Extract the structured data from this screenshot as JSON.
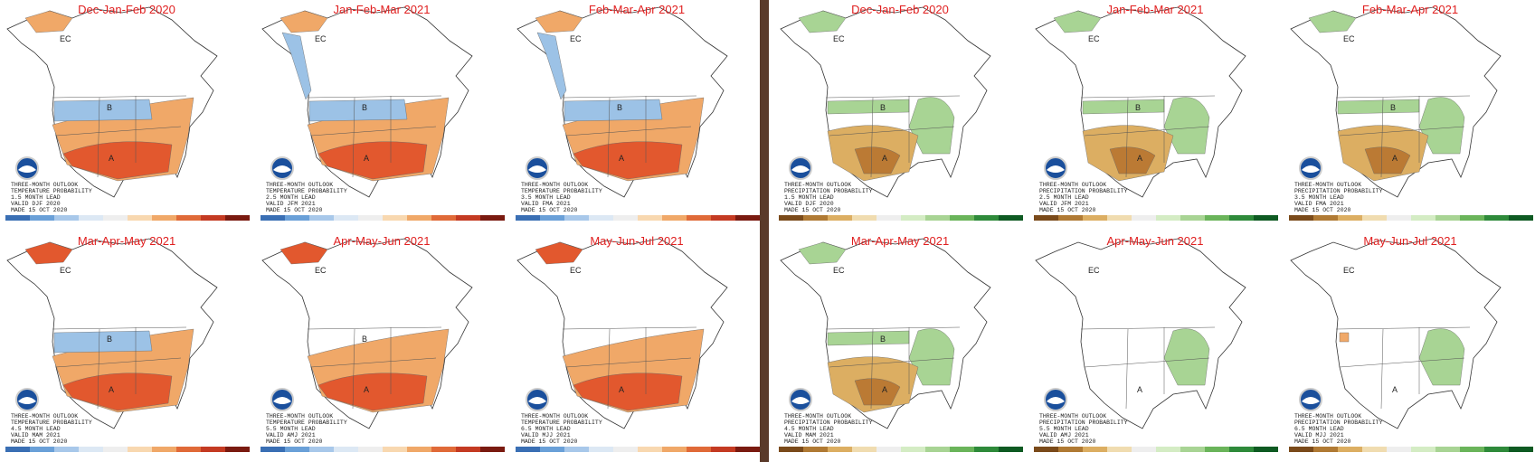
{
  "panels": [
    {
      "title": "Dec-Jan-Feb 2020",
      "outlook": [
        "THREE-MONTH OUTLOOK",
        "TEMPERATURE PROBABILITY",
        "1.5 MONTH LEAD",
        "VALID DJF 2020",
        "MADE 15 OCT 2020"
      ],
      "regions": [
        "EC",
        "A",
        "B"
      ]
    },
    {
      "title": "Jan-Feb-Mar 2021",
      "outlook": [
        "THREE-MONTH OUTLOOK",
        "TEMPERATURE PROBABILITY",
        "2.5 MONTH LEAD",
        "VALID JFM 2021",
        "MADE 15 OCT 2020"
      ],
      "regions": [
        "EC",
        "A",
        "B"
      ]
    },
    {
      "title": "Feb-Mar-Apr 2021",
      "outlook": [
        "THREE-MONTH OUTLOOK",
        "TEMPERATURE PROBABILITY",
        "3.5 MONTH LEAD",
        "VALID FMA 2021",
        "MADE 15 OCT 2020"
      ],
      "regions": [
        "EC",
        "A",
        "B"
      ]
    },
    {
      "title": "Mar-Apr-May 2021",
      "outlook": [
        "THREE-MONTH OUTLOOK",
        "TEMPERATURE PROBABILITY",
        "4.5 MONTH LEAD",
        "VALID MAM 2021",
        "MADE 15 OCT 2020"
      ],
      "regions": [
        "EC",
        "A",
        "B"
      ]
    },
    {
      "title": "Apr-May-Jun 2021",
      "outlook": [
        "THREE-MONTH OUTLOOK",
        "TEMPERATURE PROBABILITY",
        "5.5 MONTH LEAD",
        "VALID AMJ 2021",
        "MADE 15 OCT 2020"
      ],
      "regions": [
        "EC",
        "A",
        "B"
      ]
    },
    {
      "title": "May-Jun-Jul 2021",
      "outlook": [
        "THREE-MONTH OUTLOOK",
        "TEMPERATURE PROBABILITY",
        "6.5 MONTH LEAD",
        "VALID MJJ 2021",
        "MADE 15 OCT 2020"
      ],
      "regions": [
        "EC",
        "A"
      ]
    },
    {
      "title": "Dec-Jan-Feb 2020",
      "outlook": [
        "THREE-MONTH OUTLOOK",
        "PRECIPITATION PROBABILITY",
        "1.5 MONTH LEAD",
        "VALID DJF 2020",
        "MADE 15 OCT 2020"
      ],
      "regions": [
        "EC",
        "A",
        "B"
      ]
    },
    {
      "title": "Jan-Feb-Mar 2021",
      "outlook": [
        "THREE-MONTH OUTLOOK",
        "PRECIPITATION PROBABILITY",
        "2.5 MONTH LEAD",
        "VALID JFM 2021",
        "MADE 15 OCT 2020"
      ],
      "regions": [
        "EC",
        "A",
        "B"
      ]
    },
    {
      "title": "Feb-Mar-Apr 2021",
      "outlook": [
        "THREE-MONTH OUTLOOK",
        "PRECIPITATION PROBABILITY",
        "3.5 MONTH LEAD",
        "VALID FMA 2021",
        "MADE 15 OCT 2020"
      ],
      "regions": [
        "EC",
        "A",
        "B"
      ]
    },
    {
      "title": "Mar-Apr-May 2021",
      "outlook": [
        "THREE-MONTH OUTLOOK",
        "PRECIPITATION PROBABILITY",
        "4.5 MONTH LEAD",
        "VALID MAM 2021",
        "MADE 15 OCT 2020"
      ],
      "regions": [
        "EC",
        "A",
        "B"
      ]
    },
    {
      "title": "Apr-May-Jun 2021",
      "outlook": [
        "THREE-MONTH OUTLOOK",
        "PRECIPITATION PROBABILITY",
        "5.5 MONTH LEAD",
        "VALID AMJ 2021",
        "MADE 15 OCT 2020"
      ],
      "regions": [
        "EC",
        "A"
      ]
    },
    {
      "title": "May-Jun-Jul 2021",
      "outlook": [
        "THREE-MONTH OUTLOOK",
        "PRECIPITATION PROBABILITY",
        "6.5 MONTH LEAD",
        "VALID MJJ 2021",
        "MADE 15 OCT 2020"
      ],
      "regions": [
        "EC",
        "A"
      ]
    }
  ]
}
